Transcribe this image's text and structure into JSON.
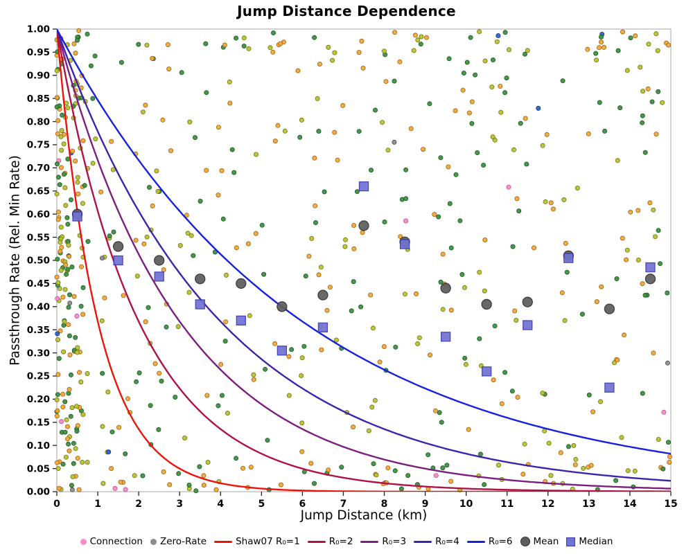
{
  "chart_data": {
    "type": "scatter",
    "title": "Jump Distance Dependence",
    "xlabel": "Jump Distance (km)",
    "ylabel": "Passthrough Rate (Rel. Min Rate)",
    "xlim": [
      0,
      15
    ],
    "ylim": [
      0,
      1
    ],
    "grid": false,
    "legend_position": "bottom",
    "x_ticks": [
      "0",
      "1",
      "2",
      "3",
      "4",
      "5",
      "6",
      "7",
      "8",
      "9",
      "10",
      "11",
      "12",
      "13",
      "14",
      "15"
    ],
    "y_ticks": [
      "0.00",
      "0.05",
      "0.10",
      "0.15",
      "0.20",
      "0.25",
      "0.30",
      "0.35",
      "0.40",
      "0.45",
      "0.50",
      "0.55",
      "0.60",
      "0.65",
      "0.70",
      "0.75",
      "0.80",
      "0.85",
      "0.90",
      "0.95",
      "1.00"
    ],
    "colors": {
      "background": "#ffffff",
      "frame": "#a6a6a6",
      "tick": "#222222",
      "text": "#000000"
    },
    "curves": {
      "model": "y = exp(-x / R0)",
      "series": [
        {
          "label": "Shaw07 R₀=1",
          "r0": 1,
          "color": "#ee1309"
        },
        {
          "label": "R₀=2",
          "r0": 2,
          "color": "#b01245"
        },
        {
          "label": "R₀=3",
          "r0": 3,
          "color": "#7c1e7e"
        },
        {
          "label": "R₀=4",
          "r0": 4,
          "color": "#3f23ad"
        },
        {
          "label": "R₀=6",
          "r0": 6,
          "color": "#1520e0"
        }
      ]
    },
    "mean": {
      "label": "Mean",
      "color": "#5d5d5d",
      "edge": "#2f2f2f",
      "x": [
        0.5,
        1.5,
        2.5,
        3.5,
        4.5,
        5.5,
        6.5,
        7.5,
        8.5,
        9.5,
        10.5,
        11.5,
        12.5,
        13.5,
        14.5
      ],
      "y": [
        0.6,
        0.53,
        0.5,
        0.46,
        0.45,
        0.4,
        0.425,
        0.575,
        0.54,
        0.44,
        0.405,
        0.41,
        0.51,
        0.395,
        0.46
      ]
    },
    "median": {
      "label": "Median",
      "color": "#7173d2",
      "edge": "#3a3ab2",
      "x": [
        0.5,
        1.5,
        2.5,
        3.5,
        4.5,
        5.5,
        6.5,
        7.5,
        8.5,
        9.5,
        10.5,
        11.5,
        12.5,
        13.5,
        14.5
      ],
      "y": [
        0.595,
        0.5,
        0.465,
        0.405,
        0.37,
        0.305,
        0.355,
        0.66,
        0.535,
        0.335,
        0.26,
        0.36,
        0.505,
        0.225,
        0.485
      ]
    },
    "scatter": {
      "note": "dense random point cloud of individual connections; regenerated deterministically from seed",
      "seed": 7,
      "count": 640,
      "dot_radius": 3.1,
      "regions": {
        "left": 0.22,
        "top": 0.07,
        "bottom": 0.07,
        "uniform": 0.64
      },
      "palette": [
        {
          "name": "green",
          "fill": "#3f8f43",
          "edge": "#1d5a23",
          "w": 0.36
        },
        {
          "name": "olive",
          "fill": "#b9c234",
          "edge": "#6e7511",
          "w": 0.27
        },
        {
          "name": "orange",
          "fill": "#f0a83c",
          "edge": "#9a640f",
          "w": 0.33
        },
        {
          "name": "blue",
          "fill": "#2a66cc",
          "edge": "#15357d",
          "w": 0.015
        },
        {
          "name": "gray",
          "fill": "#8c8c8c",
          "edge": "#4d4d4d",
          "w": 0.012
        },
        {
          "name": "pink",
          "fill": "#f78cc6",
          "edge": "#bf4f96",
          "w": 0.013
        }
      ]
    },
    "legend": [
      {
        "label": "Connection",
        "marker": "dot",
        "color": "#f78cc6"
      },
      {
        "label": "Zero-Rate",
        "marker": "dot",
        "color": "#8c8c8c"
      },
      {
        "label": "Shaw07 R₀=1",
        "marker": "line",
        "color": "#ee1309"
      },
      {
        "label": "R₀=2",
        "marker": "line",
        "color": "#b01245"
      },
      {
        "label": "R₀=3",
        "marker": "line",
        "color": "#7c1e7e"
      },
      {
        "label": "R₀=4",
        "marker": "line",
        "color": "#3f23ad"
      },
      {
        "label": "R₀=6",
        "marker": "line",
        "color": "#1520e0"
      },
      {
        "label": "Mean",
        "marker": "circle",
        "color": "#5d5d5d",
        "edge": "#2f2f2f"
      },
      {
        "label": "Median",
        "marker": "square",
        "color": "#7173d2",
        "edge": "#3a3ab2"
      }
    ]
  }
}
